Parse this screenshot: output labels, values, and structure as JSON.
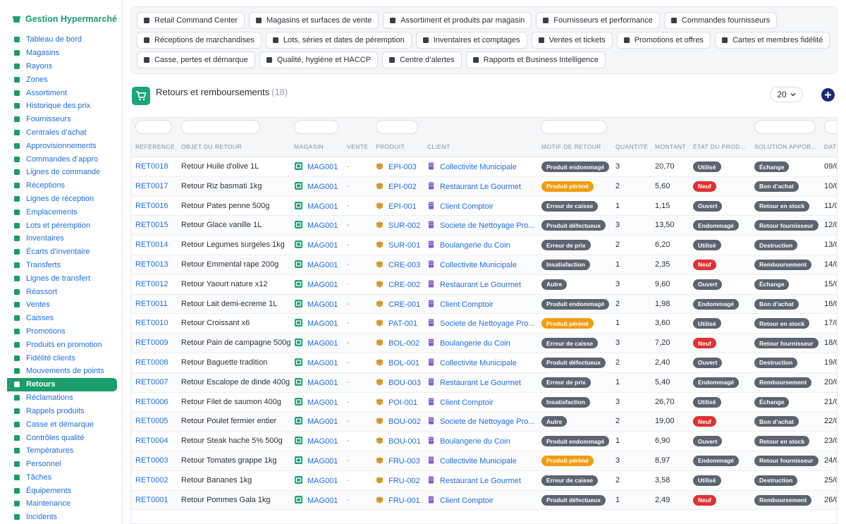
{
  "app": {
    "title": "Gestion Hypermarché"
  },
  "sidebar": {
    "items": [
      {
        "label": "Tableau de bord",
        "icon": "dashboard-icon"
      },
      {
        "label": "Magasins",
        "icon": "store-icon"
      },
      {
        "label": "Rayons",
        "icon": "shelves-icon"
      },
      {
        "label": "Zones",
        "icon": "zone-icon"
      },
      {
        "label": "Assortiment",
        "icon": "tags-icon"
      },
      {
        "label": "Historique des prix",
        "icon": "history-icon"
      },
      {
        "label": "Fournisseurs",
        "icon": "truck-icon"
      },
      {
        "label": "Centrales d’achat",
        "icon": "handshake-icon"
      },
      {
        "label": "Approvisionnements",
        "icon": "supply-icon"
      },
      {
        "label": "Commandes d’appro",
        "icon": "cart-icon"
      },
      {
        "label": "Lignes de commande",
        "icon": "list-icon"
      },
      {
        "label": "Réceptions",
        "icon": "inbox-icon"
      },
      {
        "label": "Lignes de réception",
        "icon": "list-check-icon"
      },
      {
        "label": "Emplacements",
        "icon": "location-icon"
      },
      {
        "label": "Lots et péremption",
        "icon": "boxes-icon"
      },
      {
        "label": "Inventaires",
        "icon": "clipboard-icon"
      },
      {
        "label": "Écarts d’inventaire",
        "icon": "scale-icon"
      },
      {
        "label": "Transferts",
        "icon": "transfer-icon"
      },
      {
        "label": "Lignes de transfert",
        "icon": "list-icon"
      },
      {
        "label": "Réassort",
        "icon": "restock-icon"
      },
      {
        "label": "Ventes",
        "icon": "receipt-icon"
      },
      {
        "label": "Caisses",
        "icon": "cash-register-icon"
      },
      {
        "label": "Promotions",
        "icon": "percent-icon"
      },
      {
        "label": "Produits en promotion",
        "icon": "tag-icon"
      },
      {
        "label": "Fidélité clients",
        "icon": "card-icon"
      },
      {
        "label": "Mouvements de points",
        "icon": "star-icon"
      },
      {
        "label": "Retours",
        "icon": "return-icon"
      },
      {
        "label": "Réclamations",
        "icon": "comment-icon"
      },
      {
        "label": "Rappels produits",
        "icon": "bell-icon"
      },
      {
        "label": "Casse et démarque",
        "icon": "trash-icon"
      },
      {
        "label": "Contrôles qualité",
        "icon": "check-icon"
      },
      {
        "label": "Températures",
        "icon": "thermometer-icon"
      },
      {
        "label": "Personnel",
        "icon": "person-icon"
      },
      {
        "label": "Tâches",
        "icon": "tasks-icon"
      },
      {
        "label": "Équipements",
        "icon": "equipment-icon"
      },
      {
        "label": "Maintenance",
        "icon": "wrench-icon"
      },
      {
        "label": "Incidents",
        "icon": "warning-icon"
      }
    ],
    "active_index": 26
  },
  "modules": [
    [
      {
        "label": "Retail Command Center",
        "icon": "gauge-icon"
      },
      {
        "label": "Magasins et surfaces de vente",
        "icon": "store-icon"
      },
      {
        "label": "Assortiment et produits par magasin",
        "icon": "tags-icon"
      },
      {
        "label": "Fournisseurs et performance",
        "icon": "truck-icon"
      },
      {
        "label": "Commandes fournisseurs",
        "icon": "cart-icon"
      }
    ],
    [
      {
        "label": "Réceptions de marchandises",
        "icon": "dolly-icon"
      },
      {
        "label": "Lots, séries et dates de péremption",
        "icon": "boxes-icon"
      },
      {
        "label": "Inventaires et comptages",
        "icon": "clipboard-icon"
      },
      {
        "label": "Ventes et tickets",
        "icon": "receipt-icon"
      },
      {
        "label": "Promotions et offres",
        "icon": "percent-icon"
      },
      {
        "label": "Cartes et membres fidélité",
        "icon": "card-icon"
      }
    ],
    [
      {
        "label": "Casse, pertes et démarque",
        "icon": "trash-icon"
      },
      {
        "label": "Qualité, hygiène et HACCP",
        "icon": "clipboard-check-icon"
      },
      {
        "label": "Centre d’alertes",
        "icon": "bell-icon"
      },
      {
        "label": "Rapports et Business Intelligence",
        "icon": "chart-pie-icon"
      }
    ]
  ],
  "page": {
    "title": "Retours et remboursements",
    "count": "(18)",
    "page_size": "20"
  },
  "table": {
    "headers": [
      "RÉFÉRENCE",
      "OBJET DU RETOUR",
      "MAGASIN",
      "VENTE",
      "PRODUIT",
      "CLIENT",
      "MOTIF DE RETOUR",
      "QUANTITÉ",
      "MONTANT",
      "ÉTAT DU PROD...",
      "SOLUTION APPOR...",
      "DATE"
    ],
    "colors": {
      "Produit endommagé": "#5b6470",
      "Produit périmé": "#f39c12",
      "Erreur de caisse": "#5b6470",
      "Produit défectueux": "#5b6470",
      "Erreur de prix": "#5b6470",
      "Insatisfaction": "#5b6470",
      "Autre": "#5b6470",
      "Utilisé": "#5b6470",
      "Neuf": "#e03131",
      "Ouvert": "#5b6470",
      "Endommagé": "#5b6470",
      "Échange": "#5b6470",
      "Bon d’achat": "#5b6470",
      "Retour en stock": "#5b6470",
      "Retour fournisseur": "#5b6470",
      "Destruction": "#5b6470",
      "Remboursement": "#5b6470"
    },
    "rows": [
      {
        "ref": "RET0018",
        "objet": "Retour Huile d'olive 1L",
        "magasin": "MAG001",
        "vente": "-",
        "produit": "EPI-003",
        "client": "Collectivite Municipale",
        "motif": "Produit endommagé",
        "qte": "3",
        "montant": "20,70",
        "etat": "Utilisé",
        "solution": "Échange",
        "date": "09/0"
      },
      {
        "ref": "RET0017",
        "objet": "Retour Riz basmati 1kg",
        "magasin": "MAG001",
        "vente": "-",
        "produit": "EPI-002",
        "client": "Restaurant Le Gourmet",
        "motif": "Produit périmé",
        "qte": "2",
        "montant": "5,60",
        "etat": "Neuf",
        "solution": "Bon d’achat",
        "date": "10/0"
      },
      {
        "ref": "RET0016",
        "objet": "Retour Pates penne 500g",
        "magasin": "MAG001",
        "vente": "-",
        "produit": "EPI-001",
        "client": "Client Comptoir",
        "motif": "Erreur de caisse",
        "qte": "1",
        "montant": "1,15",
        "etat": "Ouvert",
        "solution": "Retour en stock",
        "date": "11/0"
      },
      {
        "ref": "RET0015",
        "objet": "Retour Glace vanille 1L",
        "magasin": "MAG001",
        "vente": "-",
        "produit": "SUR-002",
        "client": "Societe de Nettoyage Pro...",
        "motif": "Produit défectueux",
        "qte": "3",
        "montant": "13,50",
        "etat": "Endommagé",
        "solution": "Retour fournisseur",
        "date": "12/0"
      },
      {
        "ref": "RET0014",
        "objet": "Retour Legumes surgeles 1kg",
        "magasin": "MAG001",
        "vente": "-",
        "produit": "SUR-001",
        "client": "Boulangerie du Coin",
        "motif": "Erreur de prix",
        "qte": "2",
        "montant": "6,20",
        "etat": "Utilisé",
        "solution": "Destruction",
        "date": "13/0"
      },
      {
        "ref": "RET0013",
        "objet": "Retour Emmental rape 200g",
        "magasin": "MAG001",
        "vente": "-",
        "produit": "CRE-003",
        "client": "Collectivite Municipale",
        "motif": "Insatisfaction",
        "qte": "1",
        "montant": "2,35",
        "etat": "Neuf",
        "solution": "Remboursement",
        "date": "14/0"
      },
      {
        "ref": "RET0012",
        "objet": "Retour Yaourt nature x12",
        "magasin": "MAG001",
        "vente": "-",
        "produit": "CRE-002",
        "client": "Restaurant Le Gourmet",
        "motif": "Autre",
        "qte": "3",
        "montant": "9,60",
        "etat": "Ouvert",
        "solution": "Échange",
        "date": "15/0"
      },
      {
        "ref": "RET0011",
        "objet": "Retour Lait demi-ecreme 1L",
        "magasin": "MAG001",
        "vente": "-",
        "produit": "CRE-001",
        "client": "Client Comptoir",
        "motif": "Produit endommagé",
        "qte": "2",
        "montant": "1,98",
        "etat": "Endommagé",
        "solution": "Bon d’achat",
        "date": "16/0"
      },
      {
        "ref": "RET0010",
        "objet": "Retour Croissant x6",
        "magasin": "MAG001",
        "vente": "-",
        "produit": "PAT-001",
        "client": "Societe de Nettoyage Pro...",
        "motif": "Produit périmé",
        "qte": "1",
        "montant": "3,60",
        "etat": "Utilisé",
        "solution": "Retour en stock",
        "date": "17/0"
      },
      {
        "ref": "RET0009",
        "objet": "Retour Pain de campagne 500g",
        "magasin": "MAG001",
        "vente": "-",
        "produit": "BOL-002",
        "client": "Boulangerie du Coin",
        "motif": "Erreur de caisse",
        "qte": "3",
        "montant": "7,20",
        "etat": "Neuf",
        "solution": "Retour fournisseur",
        "date": "18/0"
      },
      {
        "ref": "RET0008",
        "objet": "Retour Baguette tradition",
        "magasin": "MAG001",
        "vente": "-",
        "produit": "BOL-001",
        "client": "Collectivite Municipale",
        "motif": "Produit défectueux",
        "qte": "2",
        "montant": "2,40",
        "etat": "Ouvert",
        "solution": "Destruction",
        "date": "19/0"
      },
      {
        "ref": "RET0007",
        "objet": "Retour Escalope de dinde 400g",
        "magasin": "MAG001",
        "vente": "-",
        "produit": "BOU-003",
        "client": "Restaurant Le Gourmet",
        "motif": "Erreur de prix",
        "qte": "1",
        "montant": "5,40",
        "etat": "Endommagé",
        "solution": "Remboursement",
        "date": "20/0"
      },
      {
        "ref": "RET0006",
        "objet": "Retour Filet de saumon 400g",
        "magasin": "MAG001",
        "vente": "-",
        "produit": "POI-001",
        "client": "Client Comptoir",
        "motif": "Insatisfaction",
        "qte": "3",
        "montant": "26,70",
        "etat": "Utilisé",
        "solution": "Échange",
        "date": "21/0"
      },
      {
        "ref": "RET0005",
        "objet": "Retour Poulet fermier entier",
        "magasin": "MAG001",
        "vente": "-",
        "produit": "BOU-002",
        "client": "Societe de Nettoyage Pro...",
        "motif": "Autre",
        "qte": "2",
        "montant": "19,00",
        "etat": "Neuf",
        "solution": "Bon d’achat",
        "date": "22/0"
      },
      {
        "ref": "RET0004",
        "objet": "Retour Steak hache 5% 500g",
        "magasin": "MAG001",
        "vente": "-",
        "produit": "BOU-001",
        "client": "Boulangerie du Coin",
        "motif": "Produit endommagé",
        "qte": "1",
        "montant": "6,90",
        "etat": "Ouvert",
        "solution": "Retour en stock",
        "date": "23/0"
      },
      {
        "ref": "RET0003",
        "objet": "Retour Tomates grappe 1kg",
        "magasin": "MAG001",
        "vente": "-",
        "produit": "FRU-003",
        "client": "Collectivite Municipale",
        "motif": "Produit périmé",
        "qte": "3",
        "montant": "8,97",
        "etat": "Endommagé",
        "solution": "Retour fournisseur",
        "date": "24/0"
      },
      {
        "ref": "RET0002",
        "objet": "Retour Bananes 1kg",
        "magasin": "MAG001",
        "vente": "-",
        "produit": "FRU-002",
        "client": "Restaurant Le Gourmet",
        "motif": "Erreur de caisse",
        "qte": "2",
        "montant": "3,58",
        "etat": "Utilisé",
        "solution": "Destruction",
        "date": "25/0"
      },
      {
        "ref": "RET0001",
        "objet": "Retour Pommes Gala 1kg",
        "magasin": "MAG001",
        "vente": "-",
        "produit": "FRU-001",
        "client": "Client Comptoir",
        "motif": "Produit défectueux",
        "qte": "1",
        "montant": "2,49",
        "etat": "Neuf",
        "solution": "Remboursement",
        "date": "26/0"
      }
    ]
  }
}
